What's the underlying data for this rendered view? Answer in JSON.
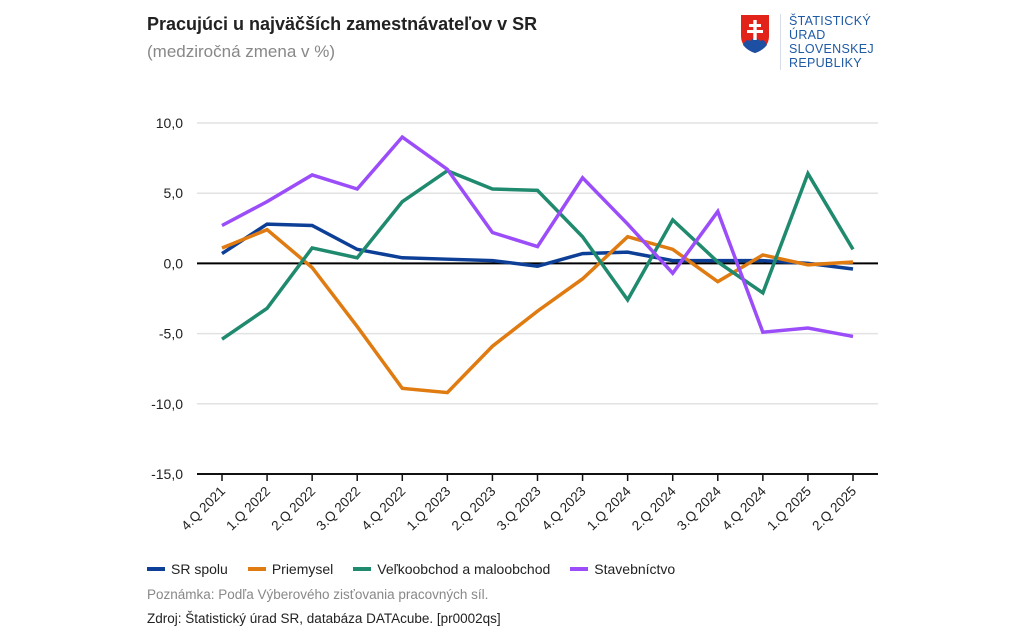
{
  "header": {
    "title": "Pracujúci u najväčších zamestnávateľov v SR",
    "subtitle": "(medziročná zmena v %)"
  },
  "logo": {
    "lines": [
      "ŠTATISTICKÝ",
      "ÚRAD",
      "SLOVENSKEJ",
      "REPUBLIKY"
    ]
  },
  "footer": {
    "note": "Poznámka: Podľa Výberového zisťovania pracovných síl.",
    "source": "Zdroj: Štatistický úrad SR, databáza DATAcube. [pr0002qs]"
  },
  "chart_data": {
    "type": "line",
    "title": "Pracujúci u najväčších zamestnávateľov v SR",
    "subtitle": "(medziročná zmena v %)",
    "categories": [
      "4.Q 2021",
      "1.Q 2022",
      "2.Q 2022",
      "3.Q 2022",
      "4.Q 2022",
      "1.Q 2023",
      "2.Q 2023",
      "3.Q 2023",
      "4.Q 2023",
      "1.Q 2024",
      "2.Q 2024",
      "3.Q 2024",
      "4.Q 2024",
      "1.Q 2025",
      "2.Q 2025"
    ],
    "ylim": [
      -15,
      10
    ],
    "yticks": [
      10,
      5,
      0,
      -5,
      -10,
      -15
    ],
    "ytick_labels": [
      "10,0",
      "5,0",
      "0,0",
      "-5,0",
      "-10,0",
      "-15,0"
    ],
    "grid": true,
    "legend": "bottom",
    "series": [
      {
        "name": "SR spolu",
        "color": "#0d3f97",
        "values": [
          0.7,
          2.8,
          2.7,
          1.0,
          0.4,
          0.3,
          0.2,
          -0.2,
          0.7,
          0.8,
          0.2,
          0.2,
          0.2,
          0.0,
          -0.4
        ]
      },
      {
        "name": "Priemysel",
        "color": "#e07b12",
        "values": [
          1.1,
          2.4,
          -0.3,
          -4.5,
          -8.9,
          -9.2,
          -5.9,
          -3.4,
          -1.1,
          1.9,
          1.0,
          -1.3,
          0.6,
          -0.1,
          0.1
        ]
      },
      {
        "name": "Veľkoobchod a maloobchod",
        "color": "#1f8a6e",
        "values": [
          -5.4,
          -3.2,
          1.1,
          0.4,
          4.4,
          6.6,
          5.3,
          5.2,
          1.9,
          -2.6,
          3.1,
          0.1,
          -2.1,
          6.4,
          1.0
        ]
      },
      {
        "name": "Stavebníctvo",
        "color": "#9b4dfa",
        "values": [
          2.7,
          4.4,
          6.3,
          5.3,
          9.0,
          6.7,
          2.2,
          1.2,
          6.1,
          2.8,
          -0.7,
          3.7,
          -4.9,
          -4.6,
          -5.2
        ]
      }
    ]
  }
}
